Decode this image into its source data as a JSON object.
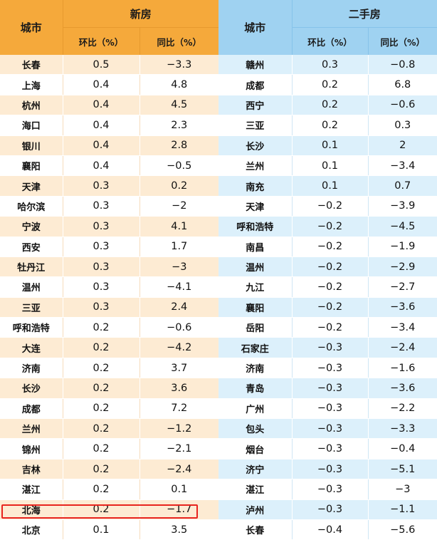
{
  "new_homes": {
    "city_header": "城市",
    "group_header": "新房",
    "mom_header": "环比（%）",
    "yoy_header": "同比（%）",
    "rows": [
      {
        "city": "长春",
        "mom": "0.5",
        "yoy": "−3.3"
      },
      {
        "city": "上海",
        "mom": "0.4",
        "yoy": "4.8"
      },
      {
        "city": "杭州",
        "mom": "0.4",
        "yoy": "4.5"
      },
      {
        "city": "海口",
        "mom": "0.4",
        "yoy": "2.3"
      },
      {
        "city": "银川",
        "mom": "0.4",
        "yoy": "2.8"
      },
      {
        "city": "襄阳",
        "mom": "0.4",
        "yoy": "−0.5"
      },
      {
        "city": "天津",
        "mom": "0.3",
        "yoy": "0.2"
      },
      {
        "city": "哈尔滨",
        "mom": "0.3",
        "yoy": "−2"
      },
      {
        "city": "宁波",
        "mom": "0.3",
        "yoy": "4.1"
      },
      {
        "city": "西安",
        "mom": "0.3",
        "yoy": "1.7"
      },
      {
        "city": "牡丹江",
        "mom": "0.3",
        "yoy": "−3"
      },
      {
        "city": "温州",
        "mom": "0.3",
        "yoy": "−4.1"
      },
      {
        "city": "三亚",
        "mom": "0.3",
        "yoy": "2.4"
      },
      {
        "city": "呼和浩特",
        "mom": "0.2",
        "yoy": "−0.6"
      },
      {
        "city": "大连",
        "mom": "0.2",
        "yoy": "−4.2"
      },
      {
        "city": "济南",
        "mom": "0.2",
        "yoy": "3.7"
      },
      {
        "city": "长沙",
        "mom": "0.2",
        "yoy": "3.6"
      },
      {
        "city": "成都",
        "mom": "0.2",
        "yoy": "7.2"
      },
      {
        "city": "兰州",
        "mom": "0.2",
        "yoy": "−1.2"
      },
      {
        "city": "锦州",
        "mom": "0.2",
        "yoy": "−2.1"
      },
      {
        "city": "吉林",
        "mom": "0.2",
        "yoy": "−2.4"
      },
      {
        "city": "湛江",
        "mom": "0.2",
        "yoy": "0.1"
      },
      {
        "city": "北海",
        "mom": "0.2",
        "yoy": "−1.7"
      },
      {
        "city": "北京",
        "mom": "0.1",
        "yoy": "3.5"
      }
    ]
  },
  "second_hand": {
    "city_header": "城市",
    "group_header": "二手房",
    "mom_header": "环比（%）",
    "yoy_header": "同比（%）",
    "rows": [
      {
        "city": "赣州",
        "mom": "0.3",
        "yoy": "−0.8"
      },
      {
        "city": "成都",
        "mom": "0.2",
        "yoy": "6.8"
      },
      {
        "city": "西宁",
        "mom": "0.2",
        "yoy": "−0.6"
      },
      {
        "city": "三亚",
        "mom": "0.2",
        "yoy": "0.3"
      },
      {
        "city": "长沙",
        "mom": "0.1",
        "yoy": "2"
      },
      {
        "city": "兰州",
        "mom": "0.1",
        "yoy": "−3.4"
      },
      {
        "city": "南充",
        "mom": "0.1",
        "yoy": "0.7"
      },
      {
        "city": "天津",
        "mom": "−0.2",
        "yoy": "−3.9"
      },
      {
        "city": "呼和浩特",
        "mom": "−0.2",
        "yoy": "−4.5"
      },
      {
        "city": "南昌",
        "mom": "−0.2",
        "yoy": "−1.9"
      },
      {
        "city": "温州",
        "mom": "−0.2",
        "yoy": "−2.9"
      },
      {
        "city": "九江",
        "mom": "−0.2",
        "yoy": "−2.7"
      },
      {
        "city": "襄阳",
        "mom": "−0.2",
        "yoy": "−3.6"
      },
      {
        "city": "岳阳",
        "mom": "−0.2",
        "yoy": "−3.4"
      },
      {
        "city": "石家庄",
        "mom": "−0.3",
        "yoy": "−2.4"
      },
      {
        "city": "济南",
        "mom": "−0.3",
        "yoy": "−1.6"
      },
      {
        "city": "青岛",
        "mom": "−0.3",
        "yoy": "−3.6"
      },
      {
        "city": "广州",
        "mom": "−0.3",
        "yoy": "−2.2"
      },
      {
        "city": "包头",
        "mom": "−0.3",
        "yoy": "−3.3"
      },
      {
        "city": "烟台",
        "mom": "−0.3",
        "yoy": "−0.4"
      },
      {
        "city": "济宁",
        "mom": "−0.3",
        "yoy": "−5.1"
      },
      {
        "city": "湛江",
        "mom": "−0.3",
        "yoy": "−3"
      },
      {
        "city": "泸州",
        "mom": "−0.3",
        "yoy": "−1.1"
      },
      {
        "city": "长春",
        "mom": "−0.4",
        "yoy": "−5.6"
      }
    ]
  },
  "colors": {
    "new_header": "#f5a93b",
    "new_stripe": "#fdebd3",
    "second_header": "#9fd2f1",
    "second_stripe": "#dcf0fb",
    "highlight": "#e8241e"
  }
}
